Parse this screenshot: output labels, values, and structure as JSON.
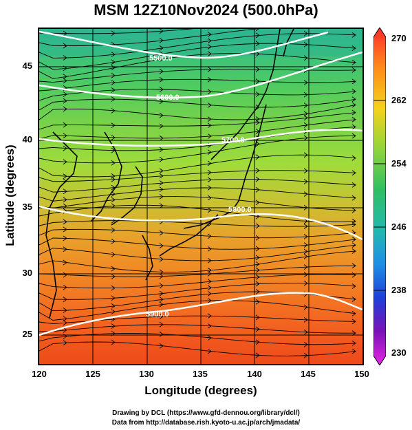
{
  "title": "MSM 12Z10Nov2024 (500.0hPa)",
  "xlabel": "Longitude (degrees)",
  "ylabel": "Latitude  (degrees)",
  "x_ticks": [
    "120",
    "125",
    "130",
    "135",
    "140",
    "145",
    "150"
  ],
  "y_ticks": [
    "45",
    "40",
    "35",
    "30",
    "25"
  ],
  "colorbar": {
    "ticks": [
      "270",
      "262",
      "254",
      "246",
      "238",
      "230"
    ],
    "colors": [
      "#ff2020",
      "#ff8c00",
      "#ffd700",
      "#9acd32",
      "#3cb371",
      "#20b2aa",
      "#1e90ff",
      "#1e3cdc",
      "#6a0dad",
      "#e020e0"
    ]
  },
  "contour_labels": [
    "5500.0",
    "5600.0",
    "5700.0",
    "5800.0",
    "5900.0"
  ],
  "credit_line1": "Drawing by DCL (https://www.gfd-dennou.org/library/dcl/)",
  "credit_line2": "Data from http://database.rish.kyoto-u.ac.jp/arch/jmadata/",
  "map_extent": {
    "lon": [
      120,
      150
    ],
    "lat": [
      22.5,
      47.5
    ]
  }
}
